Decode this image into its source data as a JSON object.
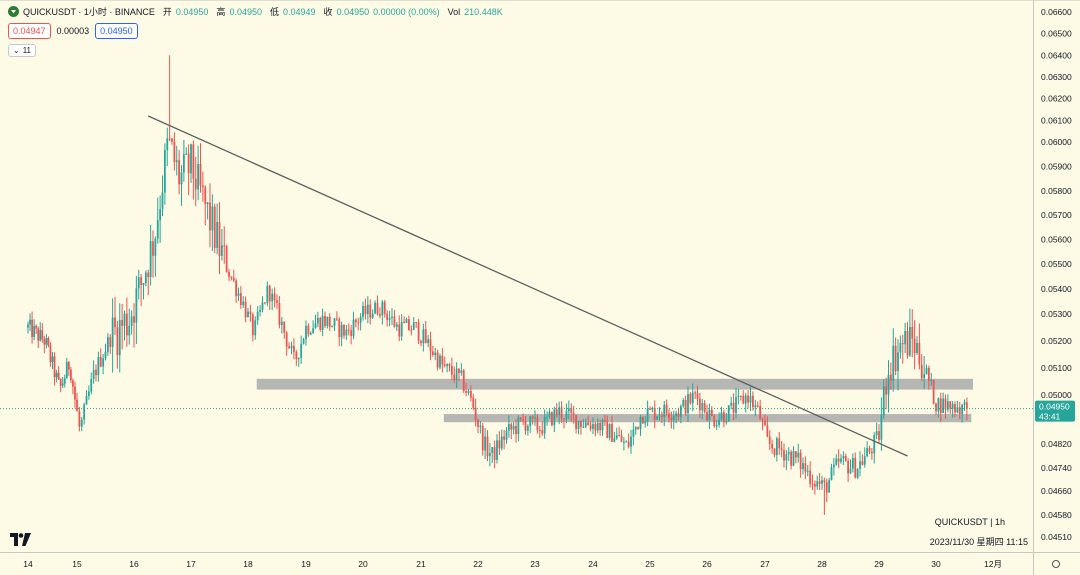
{
  "legend": {
    "symbol": "QUICKUSDT · 1小时 · BINANCE",
    "open_label": "开",
    "open": "0.04950",
    "high_label": "高",
    "high": "0.04950",
    "low_label": "低",
    "low": "0.04949",
    "close_label": "收",
    "close": "0.04950",
    "change": "0.00000 (0.00%)",
    "vol_label": "Vol",
    "vol": "210.448K"
  },
  "order": {
    "sell": "0.04947",
    "spread": "0.00003",
    "buy": "0.04950"
  },
  "indicator_toggle": "11",
  "footer": {
    "symbol_interval": "QUICKUSDT  |  1h",
    "datetime": "2023/11/30 星期四 11:15"
  },
  "price_axis_labels": [
    "0.06600",
    "0.06500",
    "0.06400",
    "0.06300",
    "0.06200",
    "0.06100",
    "0.06000",
    "0.05900",
    "0.05800",
    "0.05700",
    "0.05600",
    "0.05500",
    "0.05400",
    "0.05300",
    "0.05200",
    "0.05100",
    "0.05000",
    "0.04820",
    "0.04740",
    "0.04660",
    "0.04580",
    "0.04510"
  ],
  "date_axis_labels": [
    "14",
    "15",
    "16",
    "17",
    "18",
    "19",
    "20",
    "21",
    "22",
    "23",
    "24",
    "25",
    "26",
    "27",
    "28",
    "29",
    "30",
    "12月"
  ],
  "current_price_tag": {
    "price": "0.04950",
    "countdown": "43:41"
  },
  "colors": {
    "up": "#26a69a",
    "down": "#ef5350",
    "zone": "#a9a9a9",
    "trend": "#5d5d5d",
    "background": "#fdfbe6"
  },
  "chart_data": {
    "type": "candlestick",
    "symbol": "QUICKUSDT",
    "interval": "1h",
    "exchange": "BINANCE",
    "ylim": [
      0.0448,
      0.0662
    ],
    "x_start_day": 14,
    "annotations": [
      {
        "type": "trendline",
        "from": {
          "day": 16.25,
          "price": 0.0612
        },
        "to": {
          "day": 29.5,
          "price": 0.0478
        }
      },
      {
        "type": "zone",
        "from_day": 18.15,
        "to_day": 30.65,
        "price_low": 0.0502,
        "price_high": 0.0506
      },
      {
        "type": "zone",
        "from_day": 21.4,
        "to_day": 30.62,
        "price_low": 0.049,
        "price_high": 0.0493
      }
    ],
    "price_path": [
      [
        14.0,
        0.0525
      ],
      [
        14.35,
        0.052
      ],
      [
        14.65,
        0.0502
      ],
      [
        14.85,
        0.0512
      ],
      [
        15.05,
        0.0487
      ],
      [
        15.3,
        0.0508
      ],
      [
        15.6,
        0.0522
      ],
      [
        15.9,
        0.0528
      ],
      [
        16.1,
        0.054
      ],
      [
        16.35,
        0.056
      ],
      [
        16.6,
        0.06
      ],
      [
        16.8,
        0.0585
      ],
      [
        17.0,
        0.059
      ],
      [
        17.3,
        0.057
      ],
      [
        17.6,
        0.055
      ],
      [
        17.9,
        0.0535
      ],
      [
        18.1,
        0.0523
      ],
      [
        18.35,
        0.054
      ],
      [
        18.6,
        0.0525
      ],
      [
        18.8,
        0.0512
      ],
      [
        19.0,
        0.0525
      ],
      [
        19.3,
        0.0528
      ],
      [
        19.7,
        0.0523
      ],
      [
        20.0,
        0.053
      ],
      [
        20.3,
        0.0533
      ],
      [
        20.6,
        0.0525
      ],
      [
        20.9,
        0.0525
      ],
      [
        21.15,
        0.0518
      ],
      [
        21.4,
        0.051
      ],
      [
        21.7,
        0.0506
      ],
      [
        21.9,
        0.0497
      ],
      [
        22.1,
        0.0482
      ],
      [
        22.25,
        0.0478
      ],
      [
        22.5,
        0.0486
      ],
      [
        22.8,
        0.049
      ],
      [
        23.1,
        0.0488
      ],
      [
        23.4,
        0.0494
      ],
      [
        23.8,
        0.049
      ],
      [
        24.1,
        0.0489
      ],
      [
        24.4,
        0.0485
      ],
      [
        24.6,
        0.0481
      ],
      [
        24.85,
        0.0493
      ],
      [
        25.2,
        0.0494
      ],
      [
        25.5,
        0.0494
      ],
      [
        25.8,
        0.05
      ],
      [
        26.1,
        0.0491
      ],
      [
        26.4,
        0.0494
      ],
      [
        26.7,
        0.05
      ],
      [
        26.9,
        0.0493
      ],
      [
        27.05,
        0.0482
      ],
      [
        27.3,
        0.048
      ],
      [
        27.6,
        0.0476
      ],
      [
        27.85,
        0.047
      ],
      [
        28.05,
        0.0467
      ],
      [
        28.3,
        0.0476
      ],
      [
        28.6,
        0.0474
      ],
      [
        28.85,
        0.048
      ],
      [
        29.0,
        0.0485
      ],
      [
        29.15,
        0.051
      ],
      [
        29.4,
        0.0519
      ],
      [
        29.6,
        0.052
      ],
      [
        29.8,
        0.051
      ],
      [
        30.0,
        0.0497
      ],
      [
        30.3,
        0.0496
      ],
      [
        30.55,
        0.0495
      ]
    ],
    "wick_extremes": {
      "max_high": 0.064,
      "max_high_day": 16.62,
      "min_low": 0.0458,
      "min_low_day": 28.05
    },
    "last_price": 0.0495
  }
}
